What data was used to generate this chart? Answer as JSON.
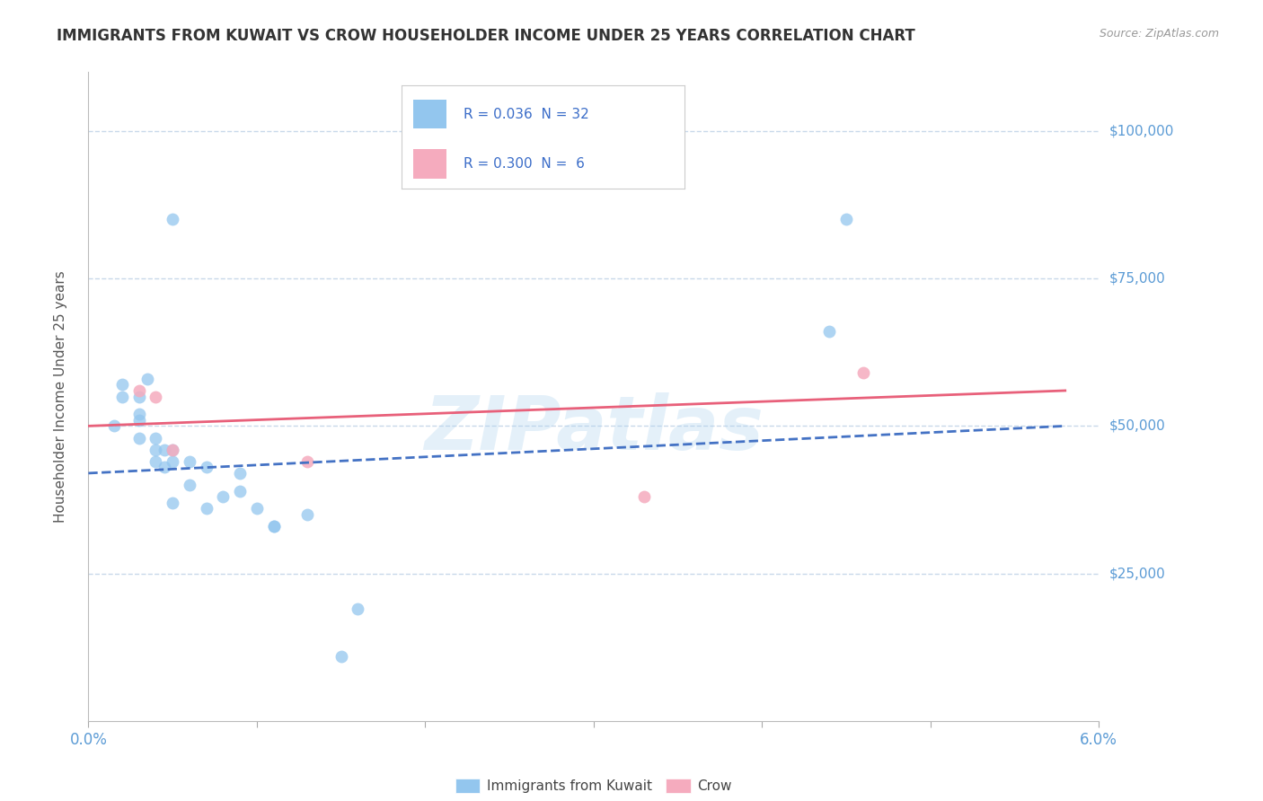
{
  "title": "IMMIGRANTS FROM KUWAIT VS CROW HOUSEHOLDER INCOME UNDER 25 YEARS CORRELATION CHART",
  "source": "Source: ZipAtlas.com",
  "ylabel": "Householder Income Under 25 years",
  "xlim": [
    0.0,
    0.06
  ],
  "ylim": [
    0,
    110000
  ],
  "xticks": [
    0.0,
    0.01,
    0.02,
    0.03,
    0.04,
    0.05,
    0.06
  ],
  "xticklabels": [
    "0.0%",
    "",
    "",
    "",
    "",
    "",
    "6.0%"
  ],
  "ytick_labels": [
    "$25,000",
    "$50,000",
    "$75,000",
    "$100,000"
  ],
  "ytick_values": [
    25000,
    50000,
    75000,
    100000
  ],
  "watermark": "ZIPatlas",
  "blue_scatter_x": [
    0.0015,
    0.002,
    0.002,
    0.003,
    0.003,
    0.003,
    0.003,
    0.0035,
    0.004,
    0.004,
    0.004,
    0.0045,
    0.0045,
    0.005,
    0.005,
    0.005,
    0.005,
    0.006,
    0.006,
    0.007,
    0.007,
    0.008,
    0.009,
    0.009,
    0.01,
    0.011,
    0.011,
    0.013,
    0.015,
    0.016,
    0.044,
    0.045
  ],
  "blue_scatter_y": [
    50000,
    55000,
    57000,
    48000,
    51000,
    52000,
    55000,
    58000,
    44000,
    46000,
    48000,
    43000,
    46000,
    37000,
    44000,
    46000,
    85000,
    40000,
    44000,
    36000,
    43000,
    38000,
    39000,
    42000,
    36000,
    33000,
    33000,
    35000,
    11000,
    19000,
    66000,
    85000
  ],
  "pink_scatter_x": [
    0.003,
    0.004,
    0.005,
    0.013,
    0.033,
    0.046
  ],
  "pink_scatter_y": [
    56000,
    55000,
    46000,
    44000,
    38000,
    59000
  ],
  "blue_line_x": [
    0.0,
    0.058
  ],
  "blue_line_y": [
    42000,
    50000
  ],
  "pink_line_x": [
    0.0,
    0.058
  ],
  "pink_line_y": [
    50000,
    56000
  ],
  "blue_color": "#93C6EE",
  "pink_color": "#F5ABBE",
  "blue_line_color": "#4472C4",
  "pink_line_color": "#E8607A",
  "title_color": "#333333",
  "axis_tick_color": "#5B9BD5",
  "ylabel_color": "#555555",
  "right_label_color": "#5B9BD5",
  "grid_color": "#C8D8EA",
  "background_color": "#FFFFFF",
  "legend_blue_text": "R = 0.036  N = 32",
  "legend_pink_text": "R = 0.300  N =  6",
  "bottom_label1": "Immigrants from Kuwait",
  "bottom_label2": "Crow"
}
